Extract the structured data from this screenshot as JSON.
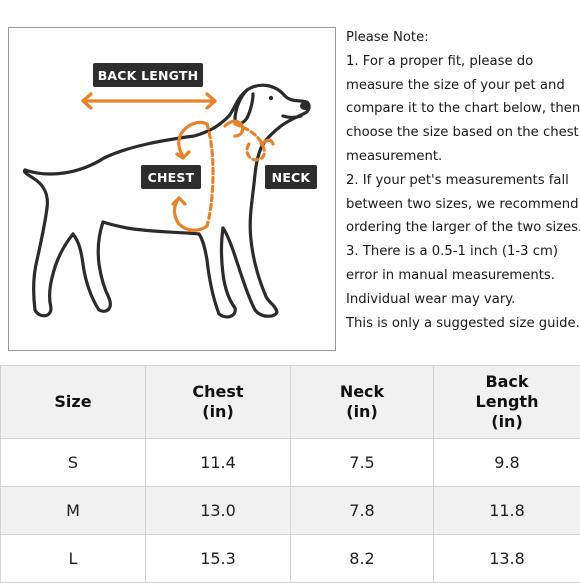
{
  "diagram": {
    "labels": {
      "back_length": "BACK LENGTH",
      "chest": "CHEST",
      "neck": "NECK"
    },
    "colors": {
      "arrow": "#e8822a",
      "outline": "#2b2b2b",
      "tag_bg": "#2d2d2d"
    }
  },
  "note": {
    "lines": [
      "Please Note:",
      "1. For a proper fit, please do",
      "measure the size of your pet and",
      "compare it to the chart below, then",
      "choose the size based on the chest",
      "measurement.",
      "2. If your pet's measurements fall",
      "between two sizes, we recommend",
      "ordering the larger of the two sizes.",
      "3. There is a 0.5-1 inch (1-3 cm)",
      "error in manual measurements.",
      "Individual wear may vary.",
      "This is only a suggested size guide."
    ]
  },
  "table": {
    "headers": [
      [
        "Size"
      ],
      [
        "Chest",
        "(in)"
      ],
      [
        "Neck",
        "(in)"
      ],
      [
        "Back",
        "Length",
        "(in)"
      ]
    ],
    "rows": [
      [
        "S",
        "11.4",
        "7.5",
        "9.8"
      ],
      [
        "M",
        "13.0",
        "7.8",
        "11.8"
      ],
      [
        "L",
        "15.3",
        "8.2",
        "13.8"
      ]
    ]
  }
}
